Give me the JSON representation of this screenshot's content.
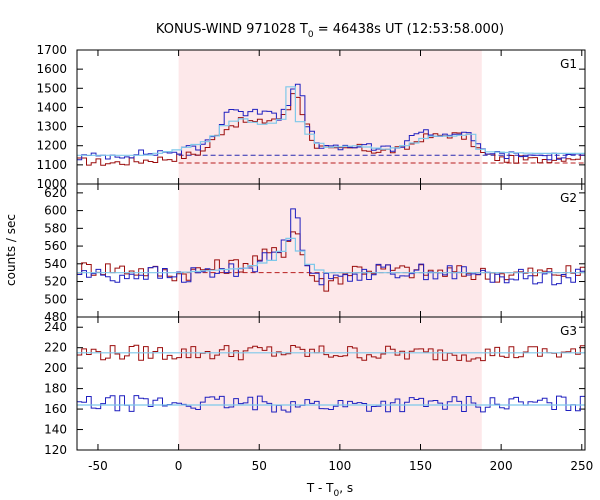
{
  "chart_data": {
    "type": "line",
    "title": "KONUS-WIND 971028 T",
    "title_subscript": "0",
    "title_suffix": " = 46438s UT (12:53:58.000)",
    "xlabel": "T - T",
    "xlabel_subscript": "0",
    "xlabel_suffix": ", s",
    "ylabel": "counts / sec",
    "xlim": [
      -63,
      252
    ],
    "x_ticks": [
      -50,
      0,
      50,
      100,
      150,
      200,
      250
    ],
    "x_tick_labels": [
      "-50",
      "0",
      "50",
      "100",
      "150",
      "200",
      "250"
    ],
    "bin_width": 2.944,
    "shaded_interval": [
      0,
      188
    ],
    "colors": {
      "shade": "#fde8ea",
      "data_red": "#9b0d0d",
      "data_blue": "#1f1fbf",
      "model_light": "#7ec8ea",
      "background_dashed_red": "#b81e1e",
      "background_dashed_blue": "#2a2ab0"
    },
    "panels": [
      {
        "name": "G1",
        "ylim": [
          1000,
          1700
        ],
        "yticks": [
          1000,
          1100,
          1200,
          1300,
          1400,
          1500,
          1600,
          1700
        ],
        "background_levels": [
          1110,
          1150
        ],
        "series": [
          {
            "color_key": "data_red",
            "points": [
              [
                -63,
                1120
              ],
              [
                -40,
                1110
              ],
              [
                -20,
                1125
              ],
              [
                0,
                1140
              ],
              [
                15,
                1170
              ],
              [
                25,
                1260
              ],
              [
                30,
                1300
              ],
              [
                40,
                1330
              ],
              [
                50,
                1320
              ],
              [
                58,
                1340
              ],
              [
                65,
                1350
              ],
              [
                70,
                1420
              ],
              [
                72,
                1540
              ],
              [
                75,
                1420
              ],
              [
                80,
                1300
              ],
              [
                85,
                1200
              ],
              [
                95,
                1170
              ],
              [
                110,
                1190
              ],
              [
                125,
                1170
              ],
              [
                140,
                1180
              ],
              [
                150,
                1240
              ],
              [
                160,
                1250
              ],
              [
                170,
                1260
              ],
              [
                180,
                1240
              ],
              [
                188,
                1160
              ],
              [
                200,
                1130
              ],
              [
                220,
                1125
              ],
              [
                240,
                1140
              ],
              [
                252,
                1140
              ]
            ]
          },
          {
            "color_key": "data_blue",
            "points": [
              [
                -63,
                1140
              ],
              [
                -40,
                1150
              ],
              [
                -20,
                1160
              ],
              [
                0,
                1170
              ],
              [
                15,
                1200
              ],
              [
                25,
                1280
              ],
              [
                30,
                1380
              ],
              [
                35,
                1400
              ],
              [
                42,
                1360
              ],
              [
                50,
                1380
              ],
              [
                58,
                1400
              ],
              [
                62,
                1340
              ],
              [
                68,
                1430
              ],
              [
                72,
                1540
              ],
              [
                76,
                1480
              ],
              [
                80,
                1300
              ],
              [
                85,
                1220
              ],
              [
                95,
                1180
              ],
              [
                110,
                1200
              ],
              [
                125,
                1180
              ],
              [
                140,
                1200
              ],
              [
                150,
                1290
              ],
              [
                160,
                1250
              ],
              [
                170,
                1270
              ],
              [
                180,
                1250
              ],
              [
                188,
                1180
              ],
              [
                200,
                1150
              ],
              [
                220,
                1150
              ],
              [
                240,
                1140
              ],
              [
                252,
                1140
              ]
            ]
          },
          {
            "color_key": "model_light",
            "points": [
              [
                -63,
                1150
              ],
              [
                -20,
                1150
              ],
              [
                0,
                1180
              ],
              [
                20,
                1230
              ],
              [
                30,
                1320
              ],
              [
                40,
                1340
              ],
              [
                50,
                1310
              ],
              [
                60,
                1320
              ],
              [
                68,
                1360
              ],
              [
                70,
                1560
              ],
              [
                73,
                1580
              ],
              [
                75,
                1330
              ],
              [
                80,
                1270
              ],
              [
                90,
                1190
              ],
              [
                110,
                1200
              ],
              [
                130,
                1180
              ],
              [
                145,
                1210
              ],
              [
                155,
                1250
              ],
              [
                170,
                1250
              ],
              [
                182,
                1260
              ],
              [
                188,
                1170
              ],
              [
                220,
                1160
              ],
              [
                252,
                1160
              ]
            ]
          }
        ]
      },
      {
        "name": "G2",
        "ylim": [
          480,
          630
        ],
        "yticks": [
          480,
          500,
          520,
          540,
          560,
          580,
          600,
          620
        ],
        "background_levels": [
          530
        ],
        "series": [
          {
            "color_key": "data_red",
            "points": [
              [
                -63,
                535
              ],
              [
                -40,
                535
              ],
              [
                -20,
                532
              ],
              [
                0,
                528
              ],
              [
                20,
                535
              ],
              [
                40,
                540
              ],
              [
                55,
                550
              ],
              [
                65,
                555
              ],
              [
                70,
                575
              ],
              [
                72,
                590
              ],
              [
                76,
                555
              ],
              [
                82,
                530
              ],
              [
                90,
                515
              ],
              [
                110,
                535
              ],
              [
                140,
                532
              ],
              [
                170,
                530
              ],
              [
                200,
                528
              ],
              [
                230,
                530
              ],
              [
                252,
                530
              ]
            ]
          },
          {
            "color_key": "data_blue",
            "points": [
              [
                -63,
                530
              ],
              [
                -40,
                525
              ],
              [
                -20,
                530
              ],
              [
                0,
                525
              ],
              [
                20,
                530
              ],
              [
                40,
                535
              ],
              [
                55,
                545
              ],
              [
                65,
                560
              ],
              [
                70,
                585
              ],
              [
                73,
                615
              ],
              [
                76,
                565
              ],
              [
                82,
                535
              ],
              [
                90,
                520
              ],
              [
                110,
                530
              ],
              [
                140,
                532
              ],
              [
                170,
                530
              ],
              [
                200,
                525
              ],
              [
                230,
                525
              ],
              [
                252,
                525
              ]
            ]
          },
          {
            "color_key": "model_light",
            "points": [
              [
                -63,
                530
              ],
              [
                0,
                530
              ],
              [
                40,
                535
              ],
              [
                60,
                545
              ],
              [
                70,
                570
              ],
              [
                73,
                590
              ],
              [
                76,
                545
              ],
              [
                90,
                530
              ],
              [
                252,
                530
              ]
            ]
          }
        ]
      },
      {
        "name": "G3",
        "ylim": [
          120,
          250
        ],
        "yticks": [
          120,
          140,
          160,
          180,
          200,
          220,
          240
        ],
        "background_levels": [],
        "series": [
          {
            "color_key": "data_red",
            "points": [
              [
                -63,
                215
              ],
              [
                0,
                215
              ],
              [
                50,
                216
              ],
              [
                100,
                215
              ],
              [
                150,
                214
              ],
              [
                200,
                215
              ],
              [
                252,
                215
              ]
            ]
          },
          {
            "color_key": "data_blue",
            "points": [
              [
                -63,
                165
              ],
              [
                0,
                166
              ],
              [
                50,
                165
              ],
              [
                100,
                164
              ],
              [
                150,
                165
              ],
              [
                200,
                165
              ],
              [
                252,
                165
              ]
            ]
          },
          {
            "color_key": "model_light",
            "points": [
              [
                -63,
                215
              ],
              [
                252,
                215
              ]
            ]
          },
          {
            "color_key": "model_light",
            "points": [
              [
                -63,
                164
              ],
              [
                252,
                164
              ]
            ]
          }
        ]
      }
    ]
  }
}
